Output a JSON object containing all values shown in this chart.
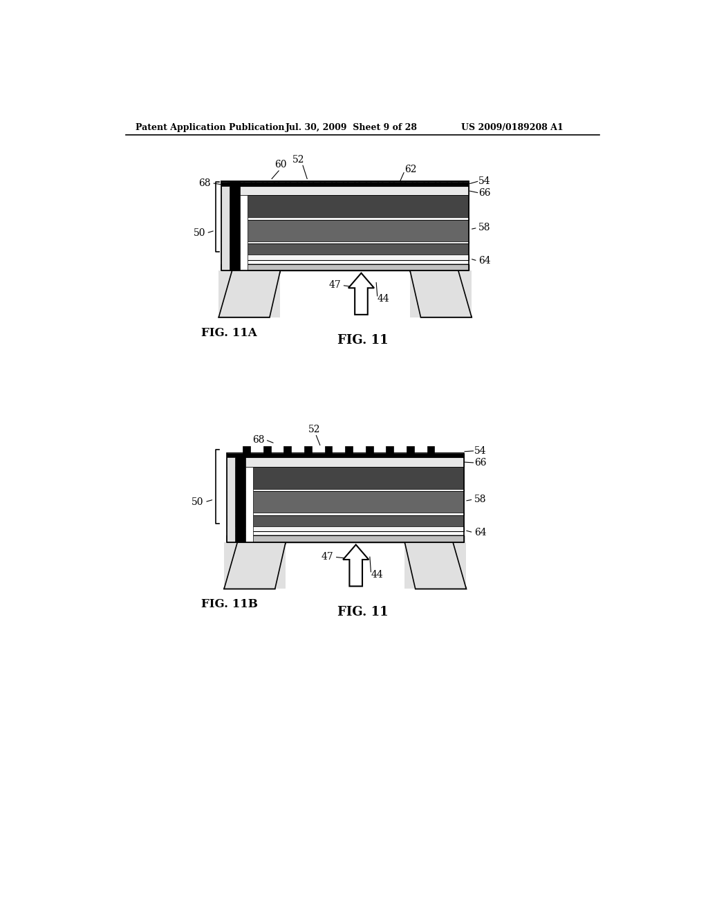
{
  "header_left": "Patent Application Publication",
  "header_mid": "Jul. 30, 2009  Sheet 9 of 28",
  "header_right": "US 2009/0189208 A1",
  "fig_label_11A": "FIG. 11A",
  "fig_label_11B": "FIG. 11B",
  "fig_label_11_top": "FIG. 11",
  "fig_label_11_bottom": "FIG. 11",
  "background": "#ffffff",
  "line_color": "#000000"
}
